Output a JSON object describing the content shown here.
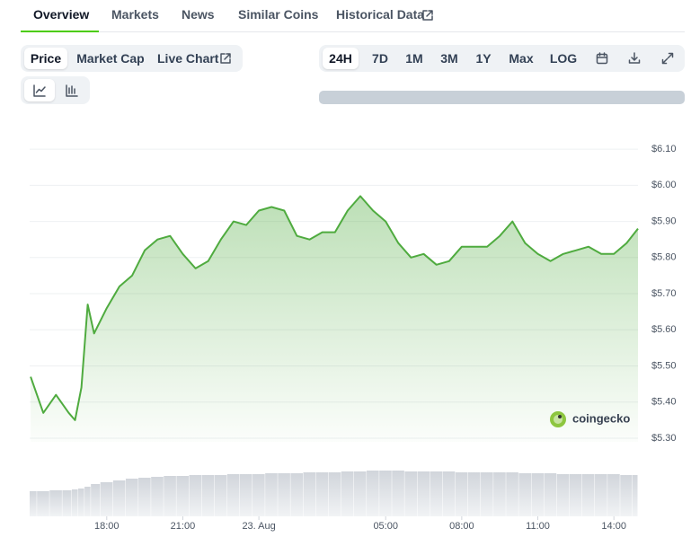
{
  "tabs": [
    "Overview",
    "Markets",
    "News",
    "Similar Coins",
    "Historical Data"
  ],
  "chart_tabs": [
    "Price",
    "Market Cap",
    "Live Chart"
  ],
  "ranges": [
    "24H",
    "7D",
    "1M",
    "3M",
    "1Y",
    "Max",
    "LOG"
  ],
  "chart_data": {
    "type": "line",
    "color": "#4fab3f",
    "watermark": "coingecko",
    "x": [
      15,
      15.5,
      16,
      16.5,
      16.75,
      17,
      17.25,
      17.5,
      18,
      18.5,
      19,
      19.5,
      20,
      20.5,
      21,
      21.5,
      22,
      22.5,
      23,
      23.5,
      24,
      24.5,
      25,
      25.5,
      26,
      26.5,
      27,
      27.5,
      28,
      28.5,
      29,
      29.5,
      30,
      30.5,
      31,
      31.5,
      32,
      32.5,
      33,
      33.5,
      34,
      34.5,
      35,
      35.5,
      36,
      36.5,
      37,
      37.5,
      38,
      38.5,
      38.95
    ],
    "values": [
      5.47,
      5.37,
      5.42,
      5.37,
      5.35,
      5.44,
      5.67,
      5.59,
      5.66,
      5.72,
      5.75,
      5.82,
      5.85,
      5.86,
      5.81,
      5.77,
      5.79,
      5.85,
      5.9,
      5.89,
      5.93,
      5.94,
      5.93,
      5.86,
      5.85,
      5.87,
      5.87,
      5.93,
      5.97,
      5.93,
      5.9,
      5.84,
      5.8,
      5.81,
      5.78,
      5.79,
      5.83,
      5.83,
      5.83,
      5.86,
      5.9,
      5.84,
      5.81,
      5.79,
      5.81,
      5.82,
      5.83,
      5.81,
      5.81,
      5.84,
      5.88
    ],
    "volume": [
      28,
      28,
      29,
      29,
      30,
      31,
      33,
      36,
      38,
      40,
      42,
      43,
      44,
      45,
      45,
      46,
      46,
      46,
      47,
      47,
      47,
      48,
      48,
      48,
      49,
      49,
      49,
      50,
      50,
      51,
      51,
      51,
      50,
      50,
      50,
      50,
      49,
      49,
      49,
      49,
      49,
      48,
      48,
      48,
      47,
      47,
      47,
      47,
      47,
      46,
      46
    ],
    "volume_lim": [
      0,
      60
    ],
    "xlim": [
      14.96,
      38.95
    ],
    "ylim": [
      5.29,
      6.14
    ],
    "xticks": [
      {
        "value": 18,
        "label": "18:00"
      },
      {
        "value": 21,
        "label": "21:00"
      },
      {
        "value": 24,
        "label": "23. Aug"
      },
      {
        "value": 29,
        "label": "05:00"
      },
      {
        "value": 32,
        "label": "08:00"
      },
      {
        "value": 35,
        "label": "11:00"
      },
      {
        "value": 38,
        "label": "14:00"
      }
    ],
    "yticks": [
      {
        "value": 6.1,
        "label": "$6.10"
      },
      {
        "value": 6.0,
        "label": "$6.00"
      },
      {
        "value": 5.9,
        "label": "$5.90"
      },
      {
        "value": 5.8,
        "label": "$5.80"
      },
      {
        "value": 5.7,
        "label": "$5.70"
      },
      {
        "value": 5.6,
        "label": "$5.60"
      },
      {
        "value": 5.5,
        "label": "$5.50"
      },
      {
        "value": 5.4,
        "label": "$5.40"
      },
      {
        "value": 5.3,
        "label": "$5.30"
      }
    ],
    "grid": true
  }
}
